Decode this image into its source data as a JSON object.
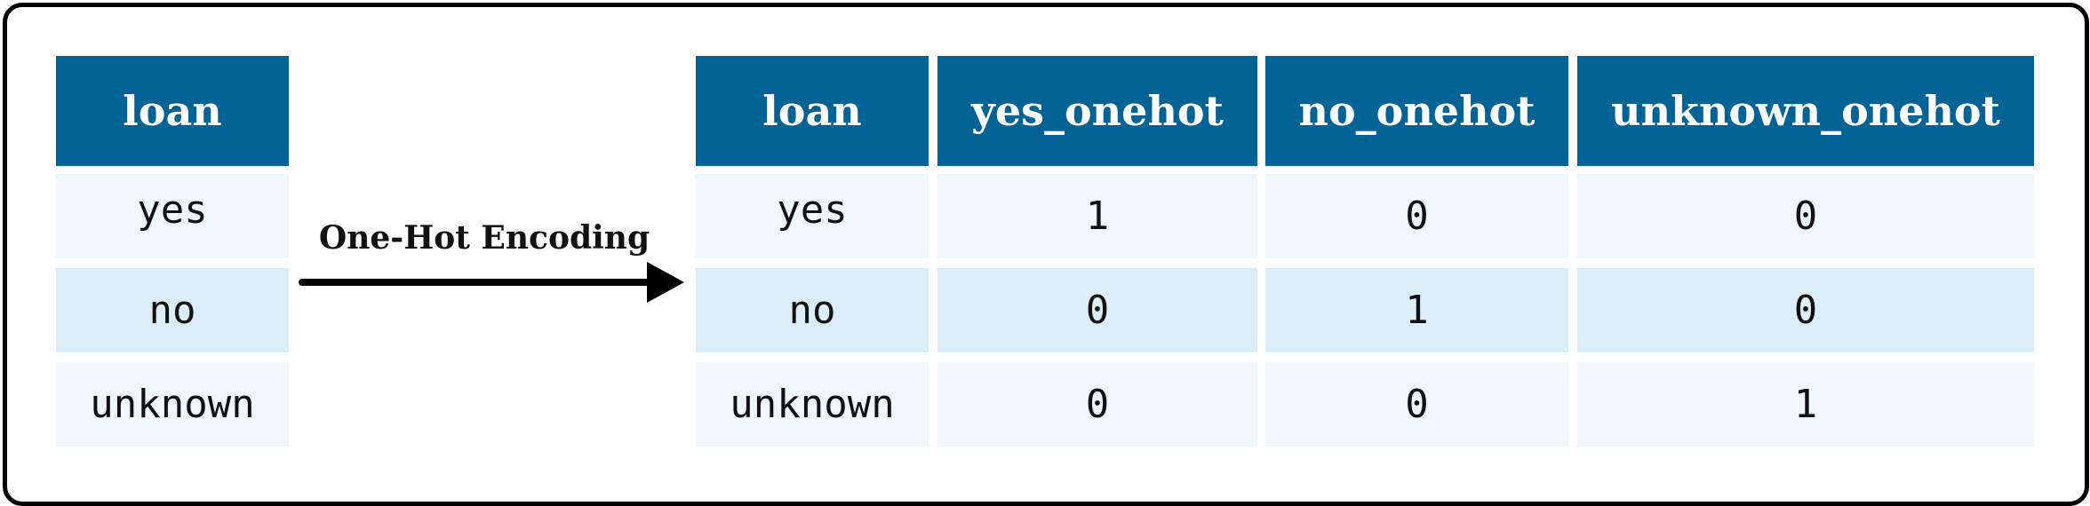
{
  "left_table": {
    "header": "loan",
    "rows": [
      "yes",
      "no",
      "unknown"
    ]
  },
  "transform": {
    "label": "One-Hot Encoding"
  },
  "right_table": {
    "headers": [
      "loan",
      "yes_onehot",
      "no_onehot",
      "unknown_onehot"
    ],
    "rows": [
      [
        "yes",
        "1",
        "0",
        "0"
      ],
      [
        "no",
        "0",
        "1",
        "0"
      ],
      [
        "unknown",
        "0",
        "0",
        "1"
      ]
    ]
  },
  "colors": {
    "header_bg": "#006394",
    "row_light": "#eff7fb",
    "row_dark": "#dbeef8"
  }
}
